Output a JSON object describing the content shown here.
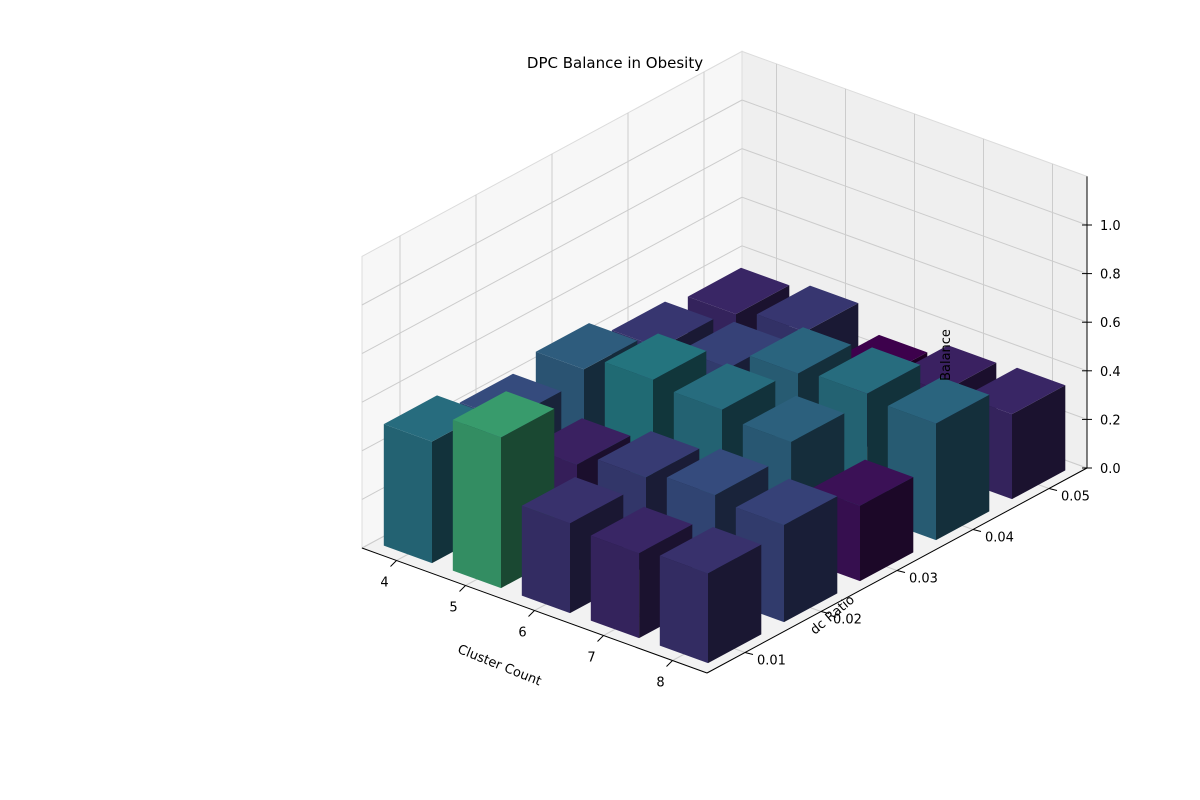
{
  "chart_data": {
    "type": "bar3d",
    "title": "DPC Balance in Obesity",
    "xlabel": "Cluster Count",
    "ylabel": "dc Ratio",
    "zlabel": "Balance",
    "x": [
      4,
      5,
      6,
      7,
      8
    ],
    "x_tick_labels": [
      "4",
      "5",
      "6",
      "7",
      "8"
    ],
    "y": [
      0.01,
      0.02,
      0.03,
      0.04,
      0.05
    ],
    "y_tick_labels": [
      "0.01",
      "0.02",
      "0.03",
      "0.04",
      "0.05"
    ],
    "z_tick_labels": [
      "0.0",
      "0.2",
      "0.4",
      "0.6",
      "0.8",
      "1.0"
    ],
    "zlim": [
      0,
      1
    ],
    "grid": true,
    "colormap": "viridis",
    "values": [
      [
        0.5,
        0.42,
        0.46,
        0.38,
        0.35
      ],
      [
        0.62,
        0.34,
        0.52,
        0.4,
        0.38
      ],
      [
        0.37,
        0.39,
        0.5,
        0.48,
        0.28
      ],
      [
        0.35,
        0.42,
        0.47,
        0.5,
        0.34
      ],
      [
        0.37,
        0.4,
        0.31,
        0.48,
        0.35
      ]
    ]
  }
}
